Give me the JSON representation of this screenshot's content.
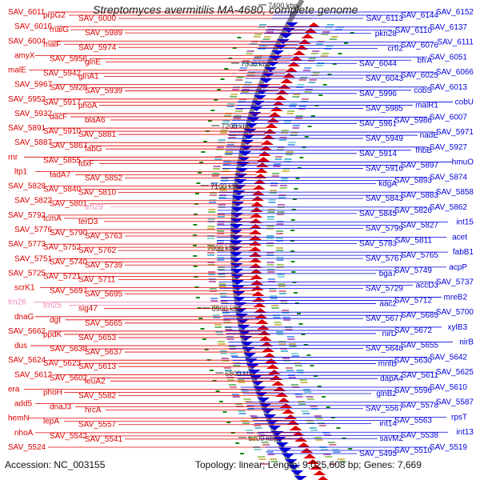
{
  "title": "Streptomyces avermitilis MA-4680, complete genome",
  "footer": {
    "accession": "Accession: NC_003155",
    "topology": "Topology: linear; Length: 9,025,608 bp; Genes: 7,669"
  },
  "colors": {
    "forward": "#dd0000",
    "reverse": "#0000dd",
    "rna": "#ee88bb",
    "backbone": "#888888",
    "tick": "#118811"
  },
  "scale_ticks": [
    "7400 kbp",
    "7300 kbp",
    "7200 kbp",
    "7100 kbp",
    "7000 kbp",
    "6900 kbp",
    "6800 kbp",
    "6700 kbp"
  ],
  "left_labels": [
    {
      "text": "SAV_6011",
      "type": "gene"
    },
    {
      "text": "prpG2",
      "type": "gene"
    },
    {
      "text": "SAV_6000",
      "type": "gene"
    },
    {
      "text": "SAV_6016",
      "type": "gene"
    },
    {
      "text": "malG",
      "type": "gene"
    },
    {
      "text": "SAV_5989",
      "type": "gene"
    },
    {
      "text": "SAV_6004",
      "type": "gene"
    },
    {
      "text": "malF",
      "type": "gene"
    },
    {
      "text": "SAV_5974",
      "type": "gene"
    },
    {
      "text": "amyX",
      "type": "gene"
    },
    {
      "text": "SAV_5956",
      "type": "gene"
    },
    {
      "text": "glnE",
      "type": "gene"
    },
    {
      "text": "malE",
      "type": "gene"
    },
    {
      "text": "SAV_5942",
      "type": "gene"
    },
    {
      "text": "glnA1",
      "type": "gene"
    },
    {
      "text": "SAV_5967",
      "type": "gene"
    },
    {
      "text": "SAV_5928",
      "type": "gene"
    },
    {
      "text": "SAV_5939",
      "type": "gene"
    },
    {
      "text": "SAV_5952",
      "type": "gene"
    },
    {
      "text": "SAV_5917",
      "type": "gene"
    },
    {
      "text": "phoA",
      "type": "gene"
    },
    {
      "text": "SAV_5932",
      "type": "gene"
    },
    {
      "text": "dacF",
      "type": "gene"
    },
    {
      "text": "blaA6",
      "type": "gene"
    },
    {
      "text": "SAV_5891",
      "type": "gene"
    },
    {
      "text": "SAV_5910",
      "type": "gene"
    },
    {
      "text": "SAV_5881",
      "type": "gene"
    },
    {
      "text": "SAV_5887",
      "type": "gene"
    },
    {
      "text": "SAV_5867",
      "type": "gene"
    },
    {
      "text": "fabG",
      "type": "gene"
    },
    {
      "text": "rnr",
      "type": "gene"
    },
    {
      "text": "SAV_5855",
      "type": "gene"
    },
    {
      "text": "fdxF",
      "type": "gene"
    },
    {
      "text": "ltp1",
      "type": "gene"
    },
    {
      "text": "fadA7",
      "type": "gene"
    },
    {
      "text": "SAV_5852",
      "type": "gene"
    },
    {
      "text": "SAV_5828",
      "type": "gene"
    },
    {
      "text": "SAV_5840",
      "type": "gene"
    },
    {
      "text": "SAV_5810",
      "type": "gene"
    },
    {
      "text": "SAV_5822",
      "type": "gene"
    },
    {
      "text": "SAV_5801",
      "type": "gene"
    },
    {
      "text": "trn29",
      "type": "rna"
    },
    {
      "text": "SAV_5792",
      "type": "gene"
    },
    {
      "text": "tcmA",
      "type": "gene"
    },
    {
      "text": "terD3",
      "type": "gene"
    },
    {
      "text": "SAV_5776",
      "type": "gene"
    },
    {
      "text": "SAV_5790",
      "type": "gene"
    },
    {
      "text": "SAV_5763",
      "type": "gene"
    },
    {
      "text": "SAV_5773",
      "type": "gene"
    },
    {
      "text": "SAV_5752",
      "type": "gene"
    },
    {
      "text": "SAV_5762",
      "type": "gene"
    },
    {
      "text": "SAV_5751",
      "type": "gene"
    },
    {
      "text": "SAV_5740",
      "type": "gene"
    },
    {
      "text": "SAV_5739",
      "type": "gene"
    },
    {
      "text": "SAV_5725",
      "type": "gene"
    },
    {
      "text": "SAV_5721",
      "type": "gene"
    },
    {
      "text": "SAV_5711",
      "type": "gene"
    },
    {
      "text": "scrK1",
      "type": "gene"
    },
    {
      "text": "SAV_5697",
      "type": "gene"
    },
    {
      "text": "SAV_5695",
      "type": "gene"
    },
    {
      "text": "trn26",
      "type": "rna"
    },
    {
      "text": "trn25",
      "type": "rna"
    },
    {
      "text": "sig47",
      "type": "gene"
    },
    {
      "text": "dnaG",
      "type": "gene"
    },
    {
      "text": "dgt",
      "type": "gene"
    },
    {
      "text": "SAV_5665",
      "type": "gene"
    },
    {
      "text": "SAV_5662",
      "type": "gene"
    },
    {
      "text": "ppdK",
      "type": "gene"
    },
    {
      "text": "SAV_5653",
      "type": "gene"
    },
    {
      "text": "dus",
      "type": "gene"
    },
    {
      "text": "SAV_5638",
      "type": "gene"
    },
    {
      "text": "SAV_5637",
      "type": "gene"
    },
    {
      "text": "SAV_5624",
      "type": "gene"
    },
    {
      "text": "SAV_5623",
      "type": "gene"
    },
    {
      "text": "SAV_5613",
      "type": "gene"
    },
    {
      "text": "SAV_5612",
      "type": "gene"
    },
    {
      "text": "SAV_5602",
      "type": "gene"
    },
    {
      "text": "leuA2",
      "type": "gene"
    },
    {
      "text": "era",
      "type": "gene"
    },
    {
      "text": "phoH",
      "type": "gene"
    },
    {
      "text": "SAV_5582",
      "type": "gene"
    },
    {
      "text": "add5",
      "type": "gene"
    },
    {
      "text": "dnaJ3",
      "type": "gene"
    },
    {
      "text": "hrcA",
      "type": "gene"
    },
    {
      "text": "hemN",
      "type": "gene"
    },
    {
      "text": "lepA",
      "type": "gene"
    },
    {
      "text": "SAV_5557",
      "type": "gene"
    },
    {
      "text": "nhoA",
      "type": "gene"
    },
    {
      "text": "SAV_5542",
      "type": "gene"
    },
    {
      "text": "SAV_5541",
      "type": "gene"
    },
    {
      "text": "SAV_5524",
      "type": "gene"
    }
  ],
  "right_labels": [
    {
      "text": "SAV_6152"
    },
    {
      "text": "SAV_6144"
    },
    {
      "text": "SAV_6113"
    },
    {
      "text": "SAV_6137"
    },
    {
      "text": "SAV_6110"
    },
    {
      "text": "pkn28"
    },
    {
      "text": "SAV_6111"
    },
    {
      "text": "SAV_6076"
    },
    {
      "text": "crtI2"
    },
    {
      "text": "SAV_6051"
    },
    {
      "text": "bfrA"
    },
    {
      "text": "SAV_6044"
    },
    {
      "text": "SAV_6066"
    },
    {
      "text": "SAV_6025"
    },
    {
      "text": "SAV_6043"
    },
    {
      "text": "SAV_6013"
    },
    {
      "text": "cobS"
    },
    {
      "text": "SAV_5996"
    },
    {
      "text": "cobU"
    },
    {
      "text": "malR1"
    },
    {
      "text": "SAV_5985"
    },
    {
      "text": "SAV_6007"
    },
    {
      "text": "SAV_5986"
    },
    {
      "text": "SAV_5961"
    },
    {
      "text": "SAV_5971"
    },
    {
      "text": "nadE"
    },
    {
      "text": "SAV_5949"
    },
    {
      "text": "SAV_5927"
    },
    {
      "text": "fhbB"
    },
    {
      "text": "SAV_5914"
    },
    {
      "text": "hmuO"
    },
    {
      "text": "SAV_5897"
    },
    {
      "text": "SAV_5916"
    },
    {
      "text": "SAV_5874"
    },
    {
      "text": "SAV_5893"
    },
    {
      "text": "kdgA"
    },
    {
      "text": "SAV_5858"
    },
    {
      "text": "SAV_5883"
    },
    {
      "text": "SAV_5843"
    },
    {
      "text": "SAV_5862"
    },
    {
      "text": "SAV_5826"
    },
    {
      "text": "SAV_5845"
    },
    {
      "text": "int15"
    },
    {
      "text": "SAV_5827"
    },
    {
      "text": "SAV_5799"
    },
    {
      "text": "acet"
    },
    {
      "text": "SAV_5811"
    },
    {
      "text": "SAV_5783"
    },
    {
      "text": "fabB1"
    },
    {
      "text": "SAV_5765"
    },
    {
      "text": "SAV_5767"
    },
    {
      "text": "acpP"
    },
    {
      "text": "SAV_5749"
    },
    {
      "text": "bga7"
    },
    {
      "text": "SAV_5737"
    },
    {
      "text": "accD3"
    },
    {
      "text": "SAV_5729"
    },
    {
      "text": "mreB2"
    },
    {
      "text": "SAV_5712"
    },
    {
      "text": "aac2"
    },
    {
      "text": "SAV_5700"
    },
    {
      "text": "SAV_5685"
    },
    {
      "text": "SAV_5677"
    },
    {
      "text": "xylB3"
    },
    {
      "text": "SAV_5672"
    },
    {
      "text": "nirD"
    },
    {
      "text": "nirB"
    },
    {
      "text": "SAV_5655"
    },
    {
      "text": "SAV_5648"
    },
    {
      "text": "SAV_5642"
    },
    {
      "text": "SAV_5630"
    },
    {
      "text": "mntB"
    },
    {
      "text": "SAV_5625"
    },
    {
      "text": "SAV_5611"
    },
    {
      "text": "dapA4"
    },
    {
      "text": "SAV_5610"
    },
    {
      "text": "SAV_5596"
    },
    {
      "text": "glnB2"
    },
    {
      "text": "SAV_5587"
    },
    {
      "text": "SAV_5578"
    },
    {
      "text": "SAV_5567"
    },
    {
      "text": "rpsT"
    },
    {
      "text": "SAV_5563"
    },
    {
      "text": "int14"
    },
    {
      "text": "int13"
    },
    {
      "text": "SAV_5538"
    },
    {
      "text": "savM2"
    },
    {
      "text": "SAV_5519"
    },
    {
      "text": "SAV_5510"
    },
    {
      "text": "SAV_5495"
    }
  ]
}
